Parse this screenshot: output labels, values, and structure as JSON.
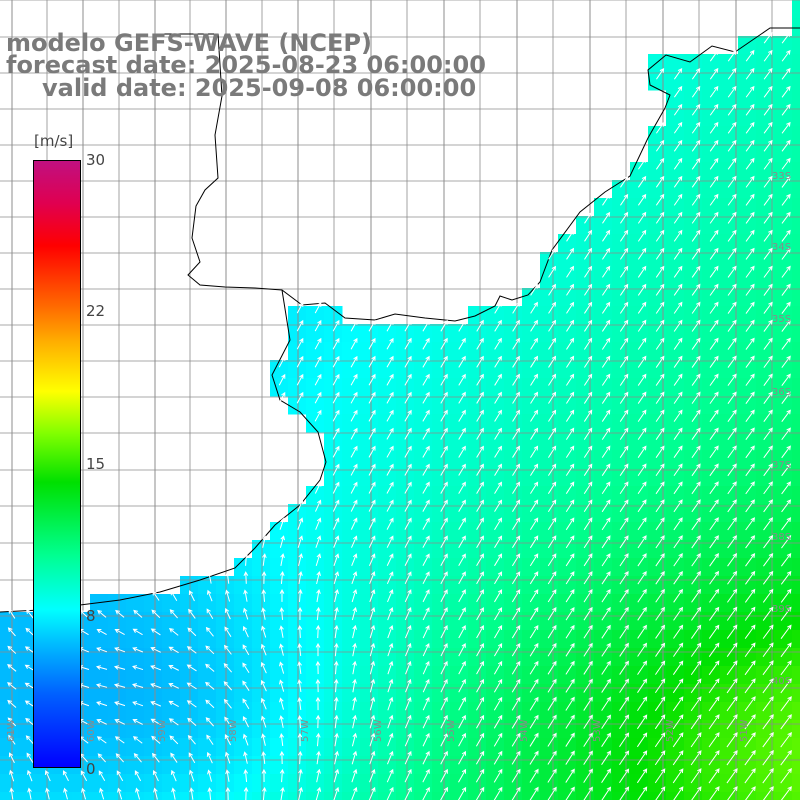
{
  "header": {
    "line1": "modelo GEFS-WAVE (NCEP)",
    "line2": "forecast date: 2025-08-23 06:00:00",
    "line3": "valid date: 2025-09-08 06:00:00"
  },
  "colorbar": {
    "unit": "[m/s]",
    "ticks": [
      "30",
      "22",
      "15",
      "8",
      "0"
    ],
    "range": [
      0,
      30
    ],
    "colors": [
      "#0000ff",
      "#00b8ff",
      "#00ffff",
      "#00e000",
      "#ffff00",
      "#ff6a00",
      "#ff0000",
      "#c01080"
    ]
  },
  "grid": {
    "lon_labels": [
      "61W",
      "60W",
      "59W",
      "58W",
      "57W",
      "56W",
      "55W",
      "54W",
      "53W",
      "52W",
      "51W"
    ],
    "lat_labels": [
      "33S",
      "34S",
      "35S",
      "36S",
      "37S",
      "38S",
      "39S",
      "40S"
    ],
    "color": "#8c8c8c"
  },
  "map": {
    "land_color": "#ffffff",
    "coast_color": "#000000",
    "arrow_color": "#ffffff",
    "field": "wind speed",
    "direction": "wind from south-west near the shelf, from south-east along Rio de la Plata"
  }
}
